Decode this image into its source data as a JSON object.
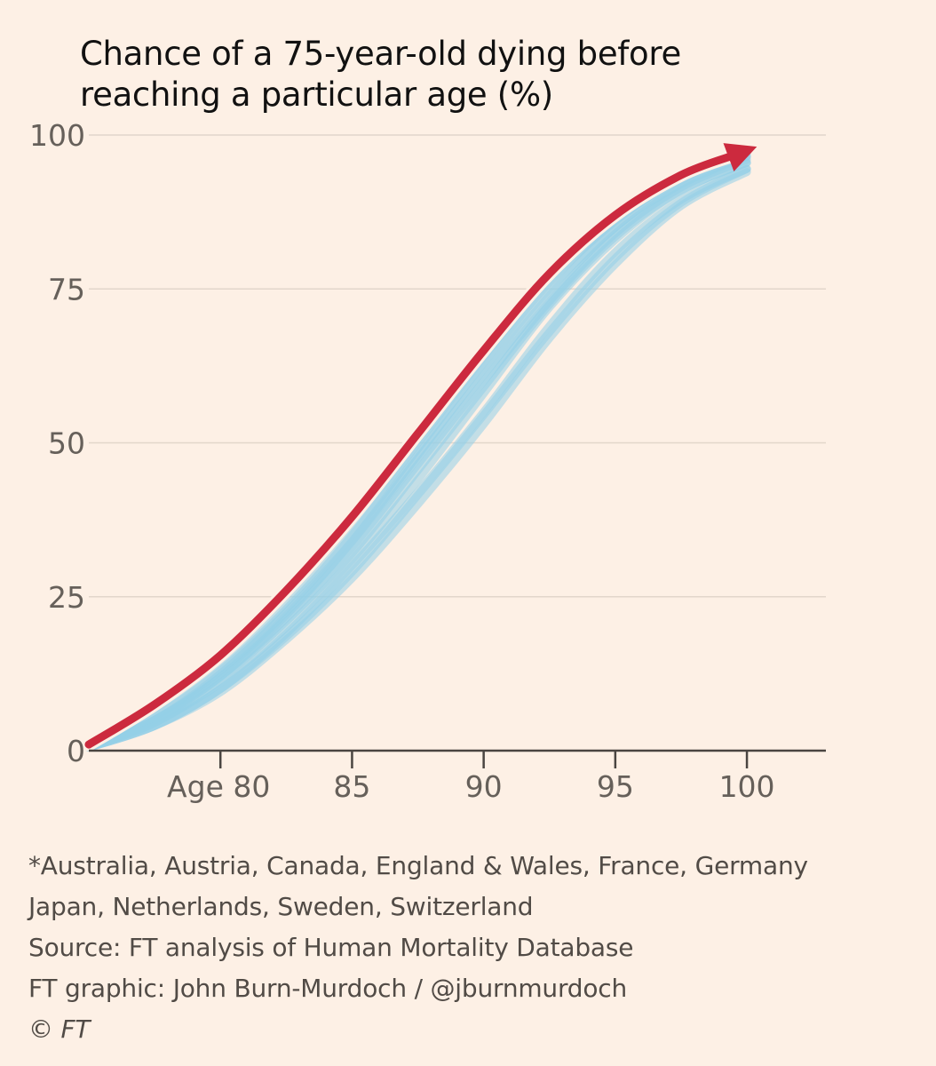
{
  "chart_data": {
    "type": "line",
    "title": "Chance of a 75-year-old dying before reaching a particular age (%)",
    "title_lines": [
      "Chance of a 75-year-old dying before",
      "reaching a particular age (%)"
    ],
    "xlabel": "",
    "ylabel": "",
    "xlim": [
      75,
      103
    ],
    "ylim": [
      0,
      100
    ],
    "x_ticks": [
      80,
      85,
      90,
      95,
      100
    ],
    "x_tick_labels": [
      "Age 80",
      "85",
      "90",
      "95",
      "100"
    ],
    "y_ticks": [
      0,
      25,
      50,
      75,
      100
    ],
    "y_tick_labels": [
      "0",
      "25",
      "50",
      "75",
      "100"
    ],
    "grid": "horizontal",
    "x": [
      75,
      77.5,
      80,
      82.5,
      85,
      87.5,
      90,
      92.5,
      95,
      97.5,
      100
    ],
    "highlight_series": {
      "name": "highlighted",
      "color": "#cc2a3e",
      "values": [
        1,
        7.5,
        15.5,
        26,
        38,
        51.5,
        65,
        77.5,
        87,
        93.5,
        97.5
      ]
    },
    "comparison_series": [
      {
        "name": "Australia",
        "values": [
          0.5,
          5,
          12,
          22,
          34,
          48,
          62,
          75,
          85,
          92.5,
          96.5
        ]
      },
      {
        "name": "Austria",
        "values": [
          0.5,
          5.5,
          13,
          23,
          35,
          49,
          63,
          76,
          86,
          93,
          97
        ]
      },
      {
        "name": "Canada",
        "values": [
          0.5,
          4.5,
          11,
          20,
          31,
          44,
          58,
          72,
          83,
          91,
          95.5
        ]
      },
      {
        "name": "England & Wales",
        "values": [
          0.5,
          5,
          12,
          21.5,
          33,
          46.5,
          60,
          73,
          84,
          91.5,
          96
        ]
      },
      {
        "name": "France",
        "values": [
          0.5,
          4,
          10,
          19,
          30,
          42,
          55,
          69,
          81,
          89.5,
          94.5
        ]
      },
      {
        "name": "Germany",
        "values": [
          0.5,
          5.5,
          13.5,
          24,
          36,
          50,
          64,
          77,
          87,
          93.5,
          97.5
        ]
      },
      {
        "name": "Japan",
        "values": [
          0.5,
          4,
          9.5,
          18,
          28,
          40,
          53,
          67,
          79,
          88.5,
          94
        ]
      },
      {
        "name": "Netherlands",
        "values": [
          0.5,
          5,
          12.5,
          22.5,
          34,
          47.5,
          61,
          74,
          85,
          92,
          96.5
        ]
      },
      {
        "name": "Sweden",
        "values": [
          0.5,
          4.5,
          11.5,
          21,
          32,
          45.5,
          59,
          72.5,
          83.5,
          91,
          95.5
        ]
      },
      {
        "name": "Switzerland",
        "values": [
          0.5,
          4,
          10,
          18.5,
          29,
          41.5,
          54.5,
          68,
          80,
          89,
          94.5
        ]
      }
    ],
    "comparison_color": "#93d0e8"
  },
  "notes": [
    "*Australia, Austria, Canada, England & Wales, France, Germany",
    "Japan, Netherlands, Sweden, Switzerland",
    "Source: FT analysis of Human Mortality Database",
    "FT graphic: John Burn-Murdoch / @jburnmurdoch"
  ],
  "copyright": "© FT"
}
